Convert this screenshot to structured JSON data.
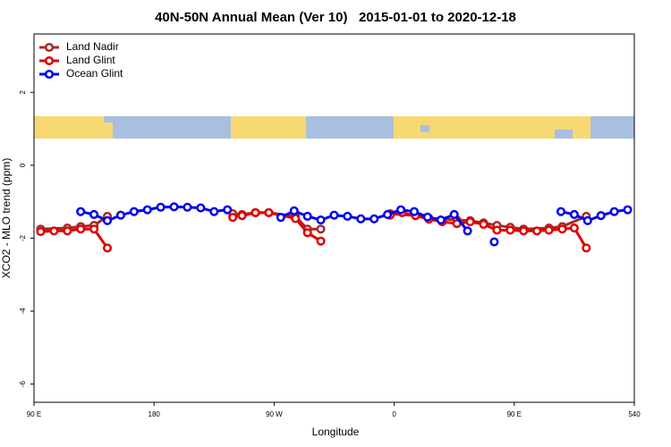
{
  "chart_data": {
    "type": "line",
    "title": "40N-50N Annual Mean (Ver 10)   2015-01-01 to 2020-12-18",
    "x_label": "Longitude",
    "y_label": "XCO2 - MLO trend (ppm)",
    "xlim": [
      90,
      540
    ],
    "xticks": [
      {
        "value": 90,
        "label": "90 E"
      },
      180,
      {
        "value": 270,
        "label": "90 W"
      },
      {
        "value": 360,
        "label": "0"
      },
      {
        "value": 450,
        "label": "90 E"
      },
      540
    ],
    "ylim": [
      -6.5,
      3.6
    ],
    "yticks": [
      2,
      0,
      -2,
      -4,
      -6
    ],
    "legend": "top-left",
    "series": [
      {
        "name": "Land Nadir",
        "color": "#a52a2a",
        "x": [
          95,
          115,
          125,
          135,
          145,
          190,
          239,
          246,
          256,
          266,
          286,
          295,
          305,
          330,
          357,
          376,
          386,
          407,
          417,
          427,
          437,
          447,
          457,
          476,
          486,
          504
        ],
        "values": [
          -1.75,
          -1.72,
          -1.68,
          -1.65,
          -1.4,
          null,
          -1.33,
          -1.35,
          -1.3,
          -1.3,
          -1.4,
          -1.75,
          -1.75,
          null,
          -1.33,
          -1.38,
          -1.45,
          -1.5,
          -1.52,
          -1.58,
          -1.65,
          -1.7,
          -1.75,
          -1.72,
          -1.68,
          -1.4
        ]
      },
      {
        "name": "Land Glint",
        "color": "#e00000",
        "x": [
          95,
          105,
          115,
          125,
          135,
          145,
          190,
          239,
          246,
          256,
          266,
          286,
          295,
          305,
          330,
          357,
          366,
          376,
          386,
          396,
          407,
          417,
          427,
          437,
          447,
          457,
          467,
          476,
          486,
          495,
          504
        ],
        "values": [
          -1.82,
          -1.8,
          -1.8,
          -1.75,
          -1.75,
          -2.27,
          null,
          -1.43,
          -1.38,
          -1.3,
          -1.3,
          -1.46,
          -1.85,
          -2.08,
          null,
          -1.37,
          -1.3,
          -1.38,
          -1.48,
          -1.55,
          -1.6,
          -1.55,
          -1.62,
          -1.78,
          -1.78,
          -1.8,
          -1.8,
          -1.78,
          -1.75,
          -1.72,
          -2.27
        ]
      },
      {
        "name": "Ocean Glint",
        "color": "#0000ee",
        "x": [
          125,
          135,
          145,
          155,
          165,
          175,
          185,
          195,
          205,
          215,
          225,
          235,
          255,
          275,
          285,
          295,
          305,
          315,
          325,
          335,
          345,
          355,
          365,
          375,
          385,
          395,
          405,
          415,
          425,
          435,
          460,
          485,
          495,
          505,
          515,
          525,
          535
        ],
        "values": [
          -1.27,
          -1.35,
          -1.52,
          -1.37,
          -1.27,
          -1.22,
          -1.15,
          -1.14,
          -1.15,
          -1.17,
          -1.27,
          -1.22,
          null,
          -1.43,
          -1.25,
          -1.4,
          -1.5,
          -1.37,
          -1.4,
          -1.47,
          -1.47,
          -1.35,
          -1.22,
          -1.27,
          -1.42,
          -1.5,
          -1.35,
          -1.8,
          null,
          -2.1,
          null,
          -1.27,
          -1.35,
          -1.52,
          -1.38,
          -1.27,
          -1.22
        ]
      }
    ]
  }
}
